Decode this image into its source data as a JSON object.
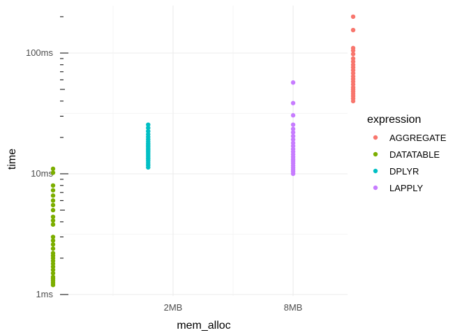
{
  "chart_data": {
    "type": "scatter",
    "x_axis": {
      "label": "mem_alloc",
      "scale": "log",
      "tick_labels": [
        "2MB",
        "8MB"
      ],
      "tick_values_mb": [
        2,
        8
      ]
    },
    "y_axis": {
      "label": "time",
      "scale": "log",
      "tick_labels": [
        "1ms",
        "10ms",
        "100ms"
      ],
      "tick_values_ms": [
        1,
        10,
        100
      ],
      "range_ms": [
        1,
        220
      ]
    },
    "grid": true,
    "legend": {
      "title": "expression",
      "position": "right"
    },
    "series": [
      {
        "name": "AGGREGATE",
        "color": "#F8766D",
        "mem_alloc_mb": 16,
        "time_ms": [
          40,
          42,
          44,
          46,
          48,
          50,
          52,
          55,
          58,
          61,
          64,
          68,
          72,
          76,
          80,
          85,
          90,
          98,
          105,
          110,
          155,
          200
        ]
      },
      {
        "name": "DATATABLE",
        "color": "#7CAE00",
        "mem_alloc_mb": 0.5,
        "time_ms": [
          1.2,
          1.25,
          1.3,
          1.35,
          1.4,
          1.5,
          1.6,
          1.7,
          1.8,
          1.9,
          2.0,
          2.1,
          2.2,
          2.4,
          2.6,
          2.8,
          3.0,
          3.8,
          4.1,
          4.4,
          5.0,
          5.5,
          6.0,
          6.6,
          7.3,
          8.0,
          10.2,
          11.0
        ]
      },
      {
        "name": "DPLYR",
        "color": "#00BFC4",
        "mem_alloc_mb": 1.5,
        "time_ms": [
          11.3,
          11.8,
          12.3,
          12.8,
          13.3,
          13.8,
          14.3,
          14.8,
          15.3,
          15.8,
          16.3,
          16.8,
          17.3,
          17.8,
          18.5,
          19.3,
          20.2,
          21.2,
          22.5,
          24.0,
          25.5
        ]
      },
      {
        "name": "LAPPLY",
        "color": "#C77CFF",
        "mem_alloc_mb": 8,
        "time_ms": [
          10.0,
          10.4,
          10.8,
          11.2,
          11.7,
          12.2,
          12.7,
          13.2,
          13.8,
          14.5,
          15.2,
          16.0,
          17.0,
          18.0,
          19.2,
          20.5,
          22.0,
          23.5,
          25.5,
          30.5,
          38.5,
          57.0
        ]
      }
    ]
  }
}
